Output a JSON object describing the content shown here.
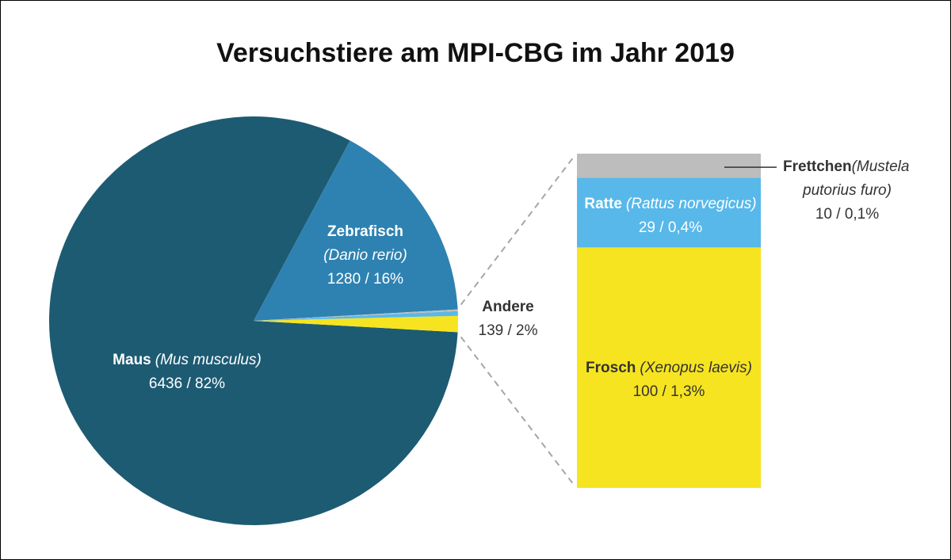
{
  "chart_data": {
    "type": "pie",
    "title": "Versuchstiere am MPI-CBG im Jahr 2019",
    "slices": [
      {
        "name": "Maus",
        "latin": "(Mus musculus)",
        "value": 6436,
        "percent_label": "6436 / 82%",
        "color": "#1d5b73"
      },
      {
        "name": "Zebrafisch",
        "latin": "(Danio rerio)",
        "value": 1280,
        "percent_label": "1280 / 16%",
        "color": "#2e82b1"
      },
      {
        "name": "Andere",
        "value": 139,
        "percent_label": "139 / 2%"
      }
    ],
    "breakdown": {
      "type": "stacked-bar",
      "of": "Andere",
      "segments": [
        {
          "name": "Frosch",
          "latin": "(Xenopus laevis)",
          "value": 100,
          "percent_label": "100 / 1,3%",
          "color": "#f6e420"
        },
        {
          "name": "Ratte",
          "latin": "(Rattus norvegicus)",
          "value": 29,
          "percent_label": "29 / 0,4%",
          "color": "#58b8ea"
        },
        {
          "name": "Frettchen",
          "latin_line1": "(Mustela",
          "latin_line2": "putorius furo)",
          "value": 10,
          "percent_label": "10 / 0,1%",
          "color": "#bdbdbd"
        }
      ]
    }
  }
}
